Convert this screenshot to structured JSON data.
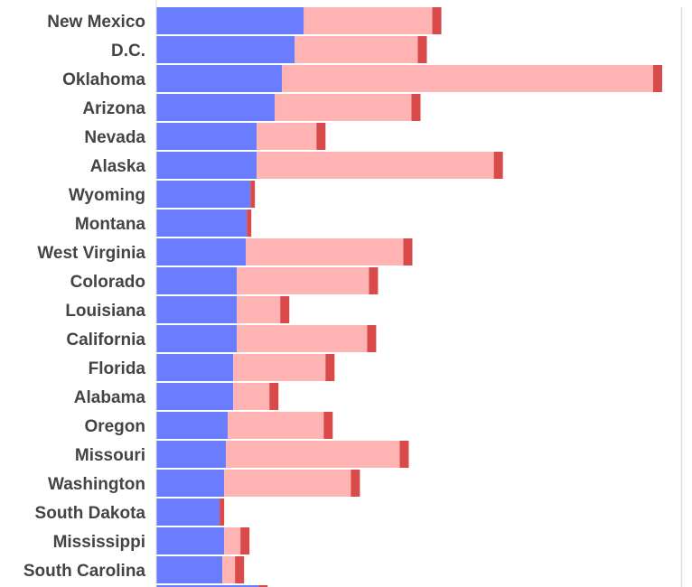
{
  "colors": {
    "blue": "#6b7dff",
    "pink": "#ffb3b3",
    "red": "#d94a4a",
    "axis": "#dddddd"
  },
  "chart_data": {
    "type": "bar",
    "stacked": true,
    "orientation": "horizontal",
    "title": "",
    "xlabel": "",
    "ylabel": "",
    "xlim": [
      0,
      580
    ],
    "gridlines": false,
    "axis_tick_labels": false,
    "categories": [
      "New Mexico",
      "D.C.",
      "Oklahoma",
      "Arizona",
      "Nevada",
      "Alaska",
      "Wyoming",
      "Montana",
      "West Virginia",
      "Colorado",
      "Louisiana",
      "California",
      "Florida",
      "Alabama",
      "Oregon",
      "Missouri",
      "Washington",
      "South Dakota",
      "Mississippi",
      "South Carolina"
    ],
    "series": [
      {
        "color": "blue",
        "values": [
          163,
          153,
          139,
          131,
          111,
          111,
          104,
          100,
          99,
          89,
          89,
          89,
          85,
          85,
          79,
          77,
          75,
          70,
          75,
          73
        ]
      },
      {
        "color": "pink",
        "values": [
          142,
          136,
          410,
          151,
          66,
          262,
          0,
          0,
          174,
          146,
          48,
          144,
          102,
          40,
          106,
          192,
          140,
          0,
          18,
          14
        ]
      },
      {
        "color": "red",
        "values": [
          10,
          10,
          10,
          10,
          10,
          10,
          5,
          5,
          10,
          10,
          10,
          10,
          10,
          10,
          10,
          10,
          10,
          5,
          10,
          10
        ]
      }
    ],
    "partial_row_below": {
      "blue": 113,
      "pink": 0,
      "red": 10
    }
  }
}
